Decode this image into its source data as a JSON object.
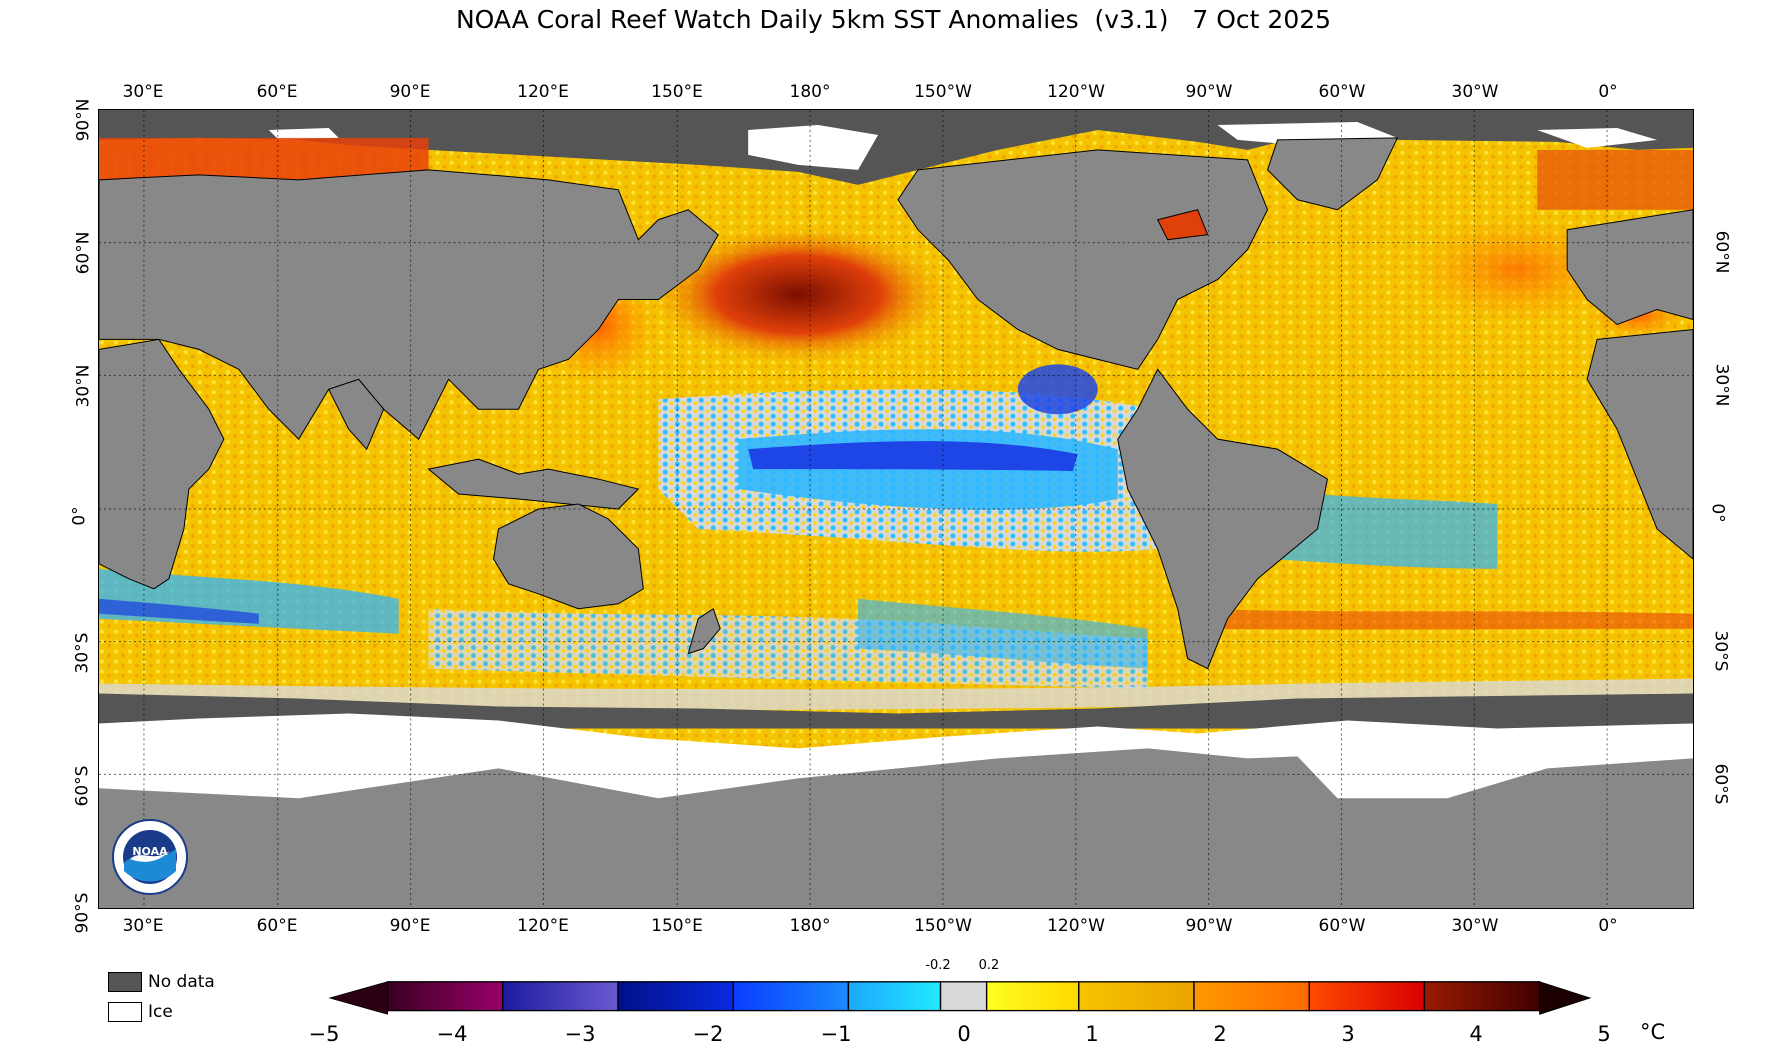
{
  "title": "NOAA Coral Reef Watch Daily 5km SST Anomalies  (v3.1)   7 Oct 2025",
  "lon_labels": [
    "30°E",
    "60°E",
    "90°E",
    "120°E",
    "150°E",
    "180°",
    "150°W",
    "120°W",
    "90°W",
    "60°W",
    "30°W",
    "0°"
  ],
  "lat_labels_left": [
    "90°N",
    "60°N",
    "30°N",
    "0°",
    "30°S",
    "60°S",
    "90°S"
  ],
  "lat_labels_right": [
    "60°N",
    "30°N",
    "0°",
    "30°S",
    "60°S"
  ],
  "legend": {
    "no_data": "No data",
    "ice": "Ice",
    "no_data_color": "#555555",
    "ice_color": "#ffffff"
  },
  "colorbar": {
    "ticks": [
      "−5",
      "−4",
      "−3",
      "−2",
      "−1",
      "0",
      "1",
      "2",
      "3",
      "4",
      "5"
    ],
    "small_ticks": [
      "-0.2",
      "0.2"
    ],
    "unit": "°C",
    "stops": [
      "#3a0022",
      "#4d005a",
      "#2a1fa8",
      "#0a1aa0",
      "#1550ff",
      "#19a8ff",
      "#22e6ff",
      "#d9d9d9",
      "#ffff22",
      "#f3b600",
      "#ff8c00",
      "#ff3a00",
      "#c80000",
      "#5a0000",
      "#2a0000"
    ]
  },
  "colors": {
    "land": "#888888",
    "no_data": "#555555",
    "ice": "#ffffff",
    "ocean_warm": "#f5c800",
    "ocean_hot": "#ff6a00",
    "ocean_very_hot": "#9a1a00",
    "ocean_neutral": "#d9d9d9",
    "ocean_cool": "#28b4ff",
    "ocean_cold": "#1e46e6"
  },
  "logo": {
    "text": "NOAA"
  }
}
